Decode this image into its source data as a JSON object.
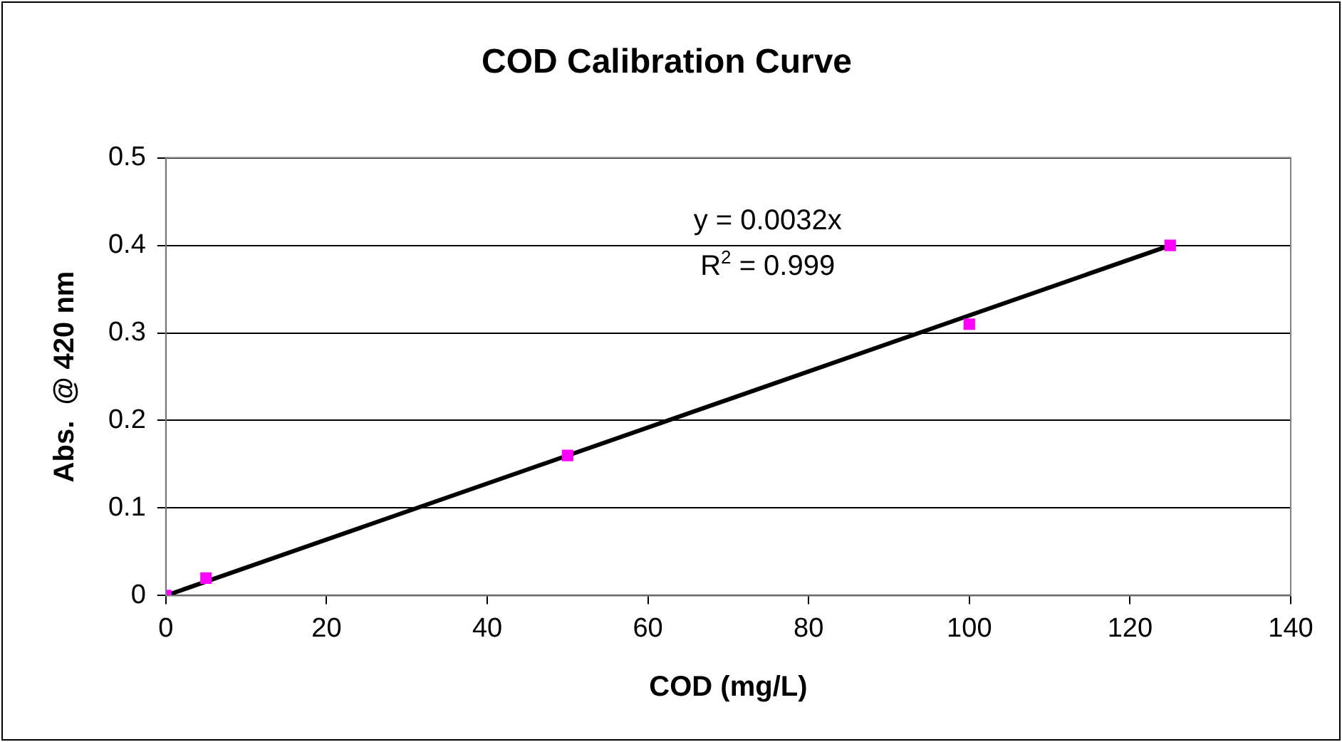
{
  "chart_data": {
    "type": "scatter",
    "title": "COD Calibration Curve",
    "xlabel": "COD (mg/L)",
    "ylabel": "Abs.  @ 420 nm",
    "series": [
      {
        "type": "scatter",
        "color": "#ff00ff",
        "x": [
          0,
          5,
          50,
          100,
          125
        ],
        "values": [
          0,
          0.02,
          0.16,
          0.31,
          0.4
        ],
        "marker": "square"
      },
      {
        "type": "line",
        "color": "#000000",
        "x": [
          0,
          125
        ],
        "values": [
          0,
          0.4
        ],
        "marker": "none",
        "line_style": "solid"
      }
    ],
    "xlim": [
      0,
      140
    ],
    "xticks": [
      0,
      20,
      40,
      60,
      80,
      100,
      120,
      140
    ],
    "ylim": [
      0,
      0.5
    ],
    "yticks": [
      0,
      0.1,
      0.2,
      0.3,
      0.4,
      0.5
    ],
    "grid": "y",
    "legend": false,
    "annotations": [
      "y = 0.0032x",
      "R$^{2}$ = 0.999"
    ]
  }
}
